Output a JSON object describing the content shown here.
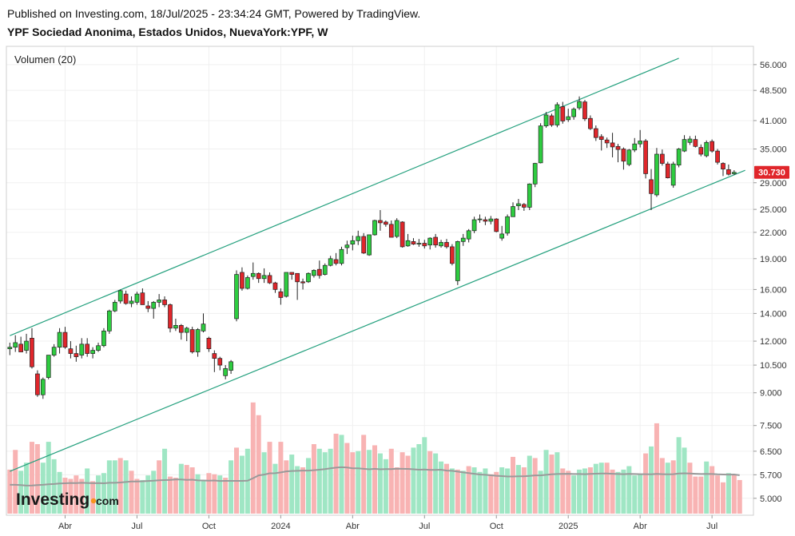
{
  "header": {
    "published": "Published on Investing.com, 18/Jul/2025 - 23:34:24 GMT, Powered by TradingView.",
    "symbol": "YPF Sociedad Anonima, Estados Unidos, NuevaYork:YPF, W"
  },
  "colors": {
    "up": "#2ecc40",
    "down": "#e0262b",
    "wick": "#222222",
    "vol_up": "#9fe6c4",
    "vol_down": "#f8b3b3",
    "channel": "#26a17f",
    "vol_ma": "#9a9a9a",
    "last_price_bg": "#e0262b",
    "grid": "#f0f0f0"
  },
  "chart_data": {
    "type": "candlestick",
    "title": "YPF Sociedad Anonima, Estados Unidos, NuevaYork:YPF, W",
    "y_scale": "log",
    "ylim": [
      4.55,
      62.0
    ],
    "y_ticks": [
      "56.000",
      "48.500",
      "41.000",
      "35.000",
      "29.000",
      "25.000",
      "22.000",
      "19.000",
      "16.000",
      "14.000",
      "12.000",
      "10.500",
      "9.000",
      "7.500",
      "6.500",
      "5.700",
      "5.000"
    ],
    "x_ticks": [
      {
        "label": "Abr",
        "week": 10
      },
      {
        "label": "Jul",
        "week": 23
      },
      {
        "label": "Oct",
        "week": 36
      },
      {
        "label": "2024",
        "week": 49
      },
      {
        "label": "Abr",
        "week": 62
      },
      {
        "label": "Jul",
        "week": 75
      },
      {
        "label": "Oct",
        "week": 88
      },
      {
        "label": "2025",
        "week": 101
      },
      {
        "label": "Abr",
        "week": 114
      },
      {
        "label": "Jul",
        "week": 127
      }
    ],
    "last_price": "30.730",
    "last_price_value": 30.73,
    "volume_label": "Volumen (20)",
    "volume_max": 100,
    "channel": {
      "upper": [
        [
          0,
          12.37
        ],
        [
          121,
          58.0
        ]
      ],
      "lower": [
        [
          0,
          5.81
        ],
        [
          133,
          31.08
        ]
      ]
    },
    "candles": [
      [
        11.5,
        11.9,
        11.1,
        11.6
      ],
      [
        11.6,
        12.4,
        11.3,
        11.9
      ],
      [
        11.8,
        12.3,
        11.3,
        11.3
      ],
      [
        11.4,
        12.5,
        11.2,
        12.0
      ],
      [
        12.2,
        12.9,
        10.3,
        10.4
      ],
      [
        10.0,
        10.2,
        8.8,
        8.9
      ],
      [
        8.9,
        9.8,
        8.7,
        9.7
      ],
      [
        9.8,
        11.1,
        9.7,
        11.1
      ],
      [
        11.1,
        11.8,
        11.0,
        11.6
      ],
      [
        11.6,
        12.9,
        11.2,
        12.6
      ],
      [
        12.6,
        13.0,
        11.5,
        11.6
      ],
      [
        11.5,
        12.0,
        10.9,
        11.2
      ],
      [
        11.2,
        11.7,
        10.7,
        11.0
      ],
      [
        11.1,
        12.2,
        10.9,
        11.8
      ],
      [
        11.8,
        12.2,
        11.0,
        11.2
      ],
      [
        11.2,
        11.6,
        10.9,
        11.4
      ],
      [
        11.4,
        11.9,
        11.3,
        11.7
      ],
      [
        11.7,
        12.9,
        11.6,
        12.7
      ],
      [
        12.7,
        14.3,
        12.5,
        14.2
      ],
      [
        14.2,
        15.1,
        14.1,
        14.9
      ],
      [
        15.0,
        16.0,
        14.8,
        15.9
      ],
      [
        15.6,
        15.9,
        14.7,
        14.8
      ],
      [
        14.8,
        15.4,
        14.5,
        15.0
      ],
      [
        14.9,
        15.8,
        14.7,
        15.6
      ],
      [
        15.7,
        16.1,
        14.7,
        14.7
      ],
      [
        14.6,
        15.0,
        14.1,
        14.4
      ],
      [
        14.4,
        15.0,
        13.6,
        14.9
      ],
      [
        14.9,
        15.6,
        14.5,
        15.1
      ],
      [
        15.1,
        15.4,
        14.5,
        14.7
      ],
      [
        14.7,
        14.8,
        12.6,
        12.9
      ],
      [
        12.9,
        13.6,
        12.7,
        13.1
      ],
      [
        13.1,
        13.2,
        12.1,
        12.6
      ],
      [
        12.6,
        13.0,
        12.0,
        12.9
      ],
      [
        12.8,
        13.0,
        11.2,
        11.3
      ],
      [
        11.3,
        12.9,
        11.0,
        12.8
      ],
      [
        12.7,
        14.0,
        12.6,
        13.2
      ],
      [
        12.2,
        12.3,
        11.3,
        11.5
      ],
      [
        11.2,
        11.4,
        10.1,
        10.9
      ],
      [
        10.9,
        11.0,
        10.2,
        10.5
      ],
      [
        9.9,
        10.5,
        9.7,
        10.3
      ],
      [
        10.2,
        10.8,
        10.0,
        10.7
      ],
      [
        13.6,
        17.8,
        13.4,
        17.4
      ],
      [
        17.6,
        18.1,
        15.9,
        16.1
      ],
      [
        16.1,
        17.3,
        16.0,
        17.1
      ],
      [
        17.2,
        18.6,
        16.9,
        17.5
      ],
      [
        17.5,
        17.6,
        16.6,
        17.0
      ],
      [
        17.0,
        18.0,
        16.6,
        17.3
      ],
      [
        17.3,
        17.6,
        16.5,
        16.6
      ],
      [
        16.6,
        16.7,
        15.7,
        16.0
      ],
      [
        15.8,
        16.1,
        14.7,
        15.3
      ],
      [
        15.4,
        17.6,
        15.3,
        17.6
      ],
      [
        17.6,
        17.6,
        16.9,
        17.4
      ],
      [
        17.5,
        17.5,
        15.1,
        16.7
      ],
      [
        16.7,
        17.0,
        16.0,
        16.6
      ],
      [
        16.7,
        17.6,
        16.6,
        17.5
      ],
      [
        17.3,
        17.9,
        17.1,
        17.8
      ],
      [
        17.9,
        18.8,
        17.0,
        17.3
      ],
      [
        17.4,
        18.5,
        17.3,
        18.3
      ],
      [
        18.3,
        19.3,
        18.2,
        19.0
      ],
      [
        18.9,
        19.6,
        18.3,
        18.5
      ],
      [
        18.5,
        20.3,
        18.3,
        20.0
      ],
      [
        20.2,
        21.0,
        19.5,
        20.5
      ],
      [
        20.6,
        21.6,
        19.9,
        21.0
      ],
      [
        21.0,
        22.2,
        20.5,
        21.5
      ],
      [
        21.5,
        21.9,
        19.5,
        19.6
      ],
      [
        19.4,
        21.7,
        19.3,
        21.7
      ],
      [
        21.7,
        23.6,
        21.6,
        23.5
      ],
      [
        23.5,
        24.9,
        22.2,
        23.2
      ],
      [
        23.3,
        23.5,
        22.7,
        23.0
      ],
      [
        23.0,
        23.5,
        21.4,
        21.4
      ],
      [
        21.5,
        23.8,
        21.3,
        23.5
      ],
      [
        23.3,
        23.4,
        20.2,
        20.3
      ],
      [
        20.4,
        21.8,
        20.3,
        21.0
      ],
      [
        20.9,
        21.3,
        20.5,
        20.6
      ],
      [
        20.6,
        21.2,
        20.3,
        20.7
      ],
      [
        20.7,
        21.1,
        20.1,
        20.4
      ],
      [
        20.5,
        21.4,
        20.0,
        21.3
      ],
      [
        21.4,
        21.8,
        20.2,
        20.5
      ],
      [
        20.4,
        21.1,
        20.2,
        20.8
      ],
      [
        20.8,
        21.2,
        20.1,
        20.3
      ],
      [
        20.3,
        20.6,
        18.3,
        18.5
      ],
      [
        16.8,
        21.0,
        16.4,
        20.9
      ],
      [
        20.9,
        21.8,
        20.4,
        21.3
      ],
      [
        21.2,
        22.4,
        20.8,
        22.2
      ],
      [
        22.2,
        24.0,
        21.9,
        23.6
      ],
      [
        23.6,
        24.3,
        23.2,
        23.7
      ],
      [
        23.6,
        24.0,
        22.9,
        23.4
      ],
      [
        23.4,
        24.1,
        23.0,
        23.7
      ],
      [
        23.7,
        23.8,
        22.0,
        22.1
      ],
      [
        21.3,
        22.8,
        21.0,
        21.8
      ],
      [
        21.9,
        24.3,
        21.6,
        24.0
      ],
      [
        24.0,
        26.0,
        24.0,
        25.4
      ],
      [
        25.5,
        26.5,
        24.9,
        25.8
      ],
      [
        25.7,
        25.9,
        24.8,
        25.3
      ],
      [
        25.3,
        28.9,
        24.9,
        28.8
      ],
      [
        28.8,
        32.4,
        28.3,
        32.3
      ],
      [
        32.4,
        40.4,
        32.3,
        39.8
      ],
      [
        39.8,
        43.0,
        39.4,
        42.3
      ],
      [
        42.1,
        42.6,
        39.6,
        40.0
      ],
      [
        40.0,
        45.4,
        39.5,
        44.8
      ],
      [
        44.3,
        45.5,
        40.3,
        40.9
      ],
      [
        41.2,
        43.8,
        40.7,
        41.9
      ],
      [
        41.9,
        44.1,
        41.2,
        43.7
      ],
      [
        44.0,
        46.9,
        43.5,
        45.6
      ],
      [
        45.5,
        46.0,
        40.9,
        41.4
      ],
      [
        41.5,
        42.2,
        38.9,
        39.2
      ],
      [
        39.2,
        39.9,
        36.6,
        37.3
      ],
      [
        37.5,
        38.0,
        34.7,
        36.9
      ],
      [
        36.8,
        37.3,
        35.2,
        36.2
      ],
      [
        36.2,
        38.3,
        33.4,
        35.4
      ],
      [
        35.5,
        36.0,
        32.5,
        34.9
      ],
      [
        35.0,
        35.3,
        31.2,
        32.7
      ],
      [
        32.1,
        35.0,
        31.8,
        34.8
      ],
      [
        34.8,
        37.2,
        34.4,
        36.0
      ],
      [
        36.0,
        38.9,
        35.3,
        36.6
      ],
      [
        36.6,
        37.0,
        29.7,
        30.5
      ],
      [
        29.5,
        31.3,
        24.9,
        27.3
      ],
      [
        27.1,
        35.2,
        26.8,
        34.0
      ],
      [
        34.0,
        34.9,
        31.9,
        32.3
      ],
      [
        32.2,
        32.6,
        29.7,
        29.8
      ],
      [
        28.6,
        32.6,
        28.2,
        32.2
      ],
      [
        32.0,
        35.2,
        31.6,
        35.0
      ],
      [
        34.6,
        37.8,
        34.4,
        36.9
      ],
      [
        36.3,
        37.6,
        35.8,
        37.0
      ],
      [
        36.9,
        37.7,
        35.3,
        35.5
      ],
      [
        35.3,
        35.9,
        33.6,
        34.0
      ],
      [
        33.7,
        36.7,
        33.4,
        36.3
      ],
      [
        36.5,
        36.9,
        34.3,
        34.6
      ],
      [
        34.6,
        35.0,
        32.1,
        32.5
      ],
      [
        32.3,
        32.5,
        30.1,
        31.3
      ],
      [
        31.2,
        32.1,
        30.2,
        30.4
      ],
      [
        30.5,
        31.1,
        30.3,
        30.73
      ]
    ],
    "volume": [
      [
        38,
        0
      ],
      [
        55,
        0
      ],
      [
        37,
        1
      ],
      [
        44,
        1
      ],
      [
        62,
        0
      ],
      [
        60,
        0
      ],
      [
        44,
        1
      ],
      [
        62,
        1
      ],
      [
        47,
        1
      ],
      [
        36,
        1
      ],
      [
        31,
        0
      ],
      [
        30,
        0
      ],
      [
        33,
        0
      ],
      [
        30,
        0
      ],
      [
        39,
        1
      ],
      [
        28,
        0
      ],
      [
        33,
        1
      ],
      [
        35,
        1
      ],
      [
        46,
        1
      ],
      [
        46,
        1
      ],
      [
        48,
        0
      ],
      [
        46,
        1
      ],
      [
        37,
        0
      ],
      [
        30,
        0
      ],
      [
        29,
        1
      ],
      [
        33,
        1
      ],
      [
        37,
        1
      ],
      [
        46,
        0
      ],
      [
        56,
        1
      ],
      [
        32,
        0
      ],
      [
        31,
        0
      ],
      [
        43,
        1
      ],
      [
        42,
        0
      ],
      [
        40,
        0
      ],
      [
        34,
        1
      ],
      [
        29,
        1
      ],
      [
        35,
        0
      ],
      [
        34,
        0
      ],
      [
        33,
        1
      ],
      [
        31,
        0
      ],
      [
        46,
        1
      ],
      [
        57,
        0
      ],
      [
        50,
        1
      ],
      [
        56,
        1
      ],
      [
        96,
        0
      ],
      [
        85,
        0
      ],
      [
        53,
        1
      ],
      [
        62,
        0
      ],
      [
        43,
        1
      ],
      [
        62,
        0
      ],
      [
        46,
        0
      ],
      [
        51,
        1
      ],
      [
        41,
        1
      ],
      [
        40,
        0
      ],
      [
        48,
        1
      ],
      [
        60,
        0
      ],
      [
        56,
        1
      ],
      [
        53,
        1
      ],
      [
        56,
        1
      ],
      [
        69,
        0
      ],
      [
        68,
        1
      ],
      [
        61,
        0
      ],
      [
        53,
        0
      ],
      [
        54,
        1
      ],
      [
        68,
        0
      ],
      [
        55,
        1
      ],
      [
        59,
        0
      ],
      [
        52,
        1
      ],
      [
        47,
        1
      ],
      [
        56,
        0
      ],
      [
        40,
        0
      ],
      [
        53,
        0
      ],
      [
        50,
        0
      ],
      [
        57,
        1
      ],
      [
        60,
        1
      ],
      [
        66,
        1
      ],
      [
        54,
        0
      ],
      [
        52,
        1
      ],
      [
        45,
        1
      ],
      [
        43,
        0
      ],
      [
        39,
        1
      ],
      [
        38,
        0
      ],
      [
        37,
        1
      ],
      [
        41,
        0
      ],
      [
        40,
        1
      ],
      [
        36,
        1
      ],
      [
        39,
        1
      ],
      [
        34,
        0
      ],
      [
        36,
        0
      ],
      [
        40,
        1
      ],
      [
        39,
        1
      ],
      [
        49,
        0
      ],
      [
        42,
        1
      ],
      [
        40,
        0
      ],
      [
        50,
        1
      ],
      [
        48,
        0
      ],
      [
        37,
        1
      ],
      [
        55,
        1
      ],
      [
        51,
        0
      ],
      [
        53,
        1
      ],
      [
        39,
        0
      ],
      [
        37,
        0
      ],
      [
        33,
        1
      ],
      [
        38,
        1
      ],
      [
        39,
        1
      ],
      [
        40,
        0
      ],
      [
        43,
        1
      ],
      [
        44,
        1
      ],
      [
        44,
        0
      ],
      [
        38,
        0
      ],
      [
        36,
        1
      ],
      [
        38,
        1
      ],
      [
        41,
        1
      ],
      [
        33,
        1
      ],
      [
        34,
        1
      ],
      [
        52,
        0
      ],
      [
        58,
        1
      ],
      [
        78,
        0
      ],
      [
        48,
        0
      ],
      [
        44,
        1
      ],
      [
        46,
        0
      ],
      [
        66,
        1
      ],
      [
        57,
        1
      ],
      [
        44,
        0
      ],
      [
        32,
        0
      ],
      [
        32,
        0
      ],
      [
        45,
        1
      ],
      [
        41,
        0
      ],
      [
        33,
        0
      ],
      [
        27,
        0
      ],
      [
        35,
        1
      ],
      [
        34,
        0
      ],
      [
        29,
        0
      ]
    ],
    "volume_ma": [
      24.9,
      24.9,
      24.7,
      24.2,
      24.3,
      24.6,
      24.9,
      25.3,
      25.6,
      26.0,
      26.2,
      26.5,
      26.4,
      26.6,
      26.5,
      26.3,
      26.4,
      26.2,
      26.6,
      26.6,
      26.9,
      27.3,
      27.7,
      27.8,
      27.9,
      28.2,
      28.4,
      28.8,
      29.0,
      29.2,
      29.5,
      29.5,
      29.2,
      29.3,
      28.7,
      28.6,
      28.5,
      28.6,
      28.2,
      28.3,
      28.3,
      28.3,
      28.3,
      28.4,
      30.6,
      33.0,
      33.7,
      34.8,
      34.9,
      35.6,
      36.5,
      36.8,
      37.0,
      37.2,
      37.2,
      37.5,
      37.9,
      38.4,
      39.1,
      39.7,
      40.1,
      39.8,
      39.1,
      39.1,
      38.7,
      38.3,
      38.7,
      38.3,
      38.5,
      38.4,
      38.8,
      38.7,
      38.6,
      38.3,
      37.9,
      38.1,
      37.8,
      37.7,
      37.9,
      37.2,
      37.0,
      36.3,
      35.6,
      35.0,
      34.4,
      33.8,
      33.5,
      33.1,
      32.7,
      32.4,
      32.1,
      32.1,
      32.2,
      32.3,
      32.6,
      33.0,
      33.0,
      33.5,
      33.9,
      34.2,
      34.3,
      34.4,
      34.2,
      34.2,
      34.1,
      34.3,
      34.5,
      34.7,
      34.7,
      34.4,
      34.2,
      34.1,
      34.3,
      34.2,
      34.1,
      34.1,
      34.0,
      34.3,
      34.1,
      33.9,
      34.1,
      34.6,
      34.8,
      34.7,
      34.4,
      34.2,
      34.3,
      34.2,
      33.9,
      33.8,
      33.7,
      33.8,
      33.2
    ]
  }
}
